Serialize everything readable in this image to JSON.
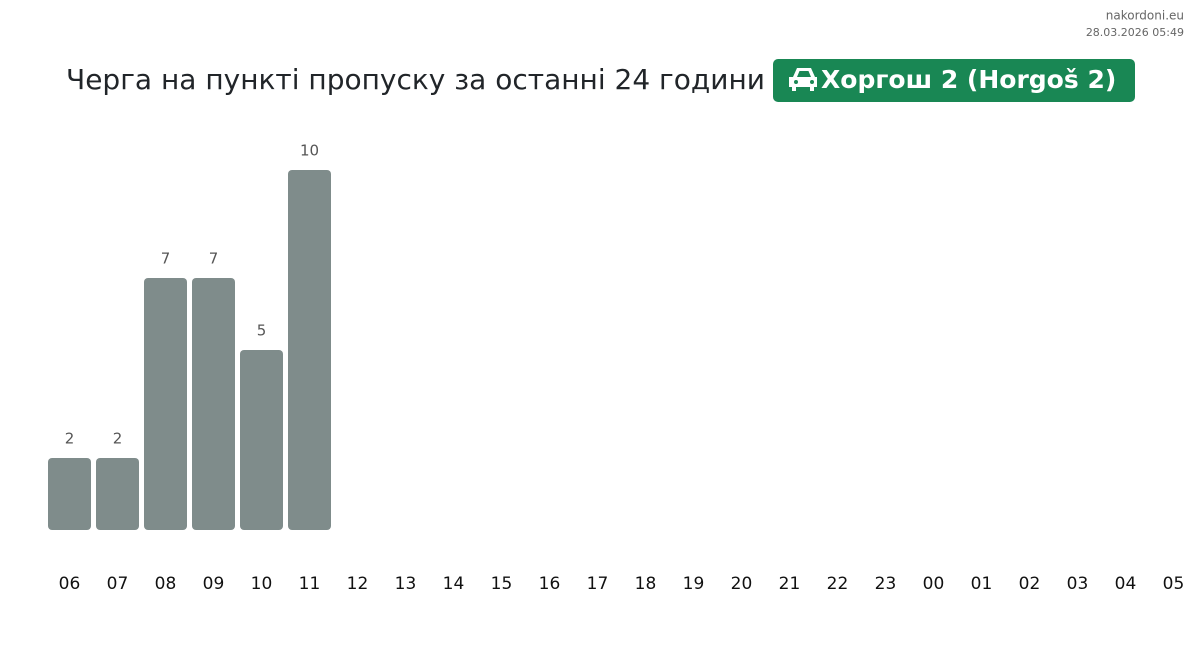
{
  "chart_data": {
    "type": "bar",
    "title": "Черга на пункті пропуску за останні 24 години",
    "badge": "Хоргош 2 (Horgoš 2)",
    "source": "nakordoni.eu",
    "timestamp": "28.03.2026 05:49",
    "categories": [
      "06",
      "07",
      "08",
      "09",
      "10",
      "11",
      "12",
      "13",
      "14",
      "15",
      "16",
      "17",
      "18",
      "19",
      "20",
      "21",
      "22",
      "23",
      "00",
      "01",
      "02",
      "03",
      "04",
      "05"
    ],
    "values": [
      2,
      2,
      7,
      7,
      5,
      10,
      null,
      null,
      null,
      null,
      null,
      null,
      null,
      null,
      null,
      null,
      null,
      null,
      null,
      null,
      null,
      null,
      null,
      null
    ],
    "color": "#7f8c8b",
    "badge_color": "#198754"
  }
}
